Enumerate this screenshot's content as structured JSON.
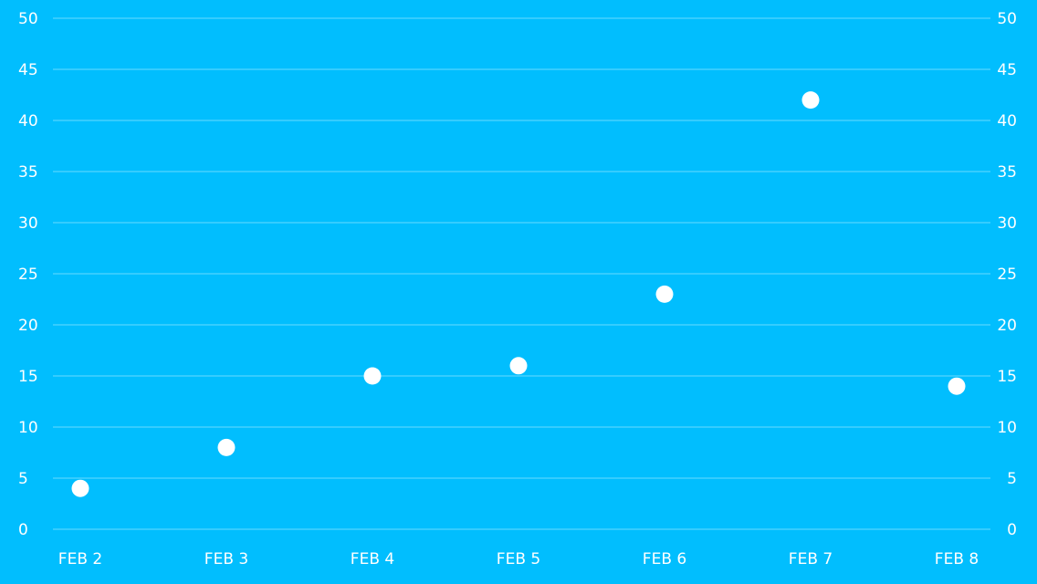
{
  "colors": {
    "background": "#01BEFE",
    "gridline": "rgba(255,255,255,0.28)",
    "text": "#ffffff",
    "point": "#ffffff"
  },
  "chart_data": {
    "type": "scatter",
    "title": "",
    "xlabel": "",
    "ylabel": "",
    "categories": [
      "FEB 2",
      "FEB 3",
      "FEB 4",
      "FEB 5",
      "FEB 6",
      "FEB 7",
      "FEB 8"
    ],
    "values": [
      4,
      8,
      15,
      16,
      23,
      42,
      14
    ],
    "ylim": [
      0,
      50
    ],
    "yticks": [
      0,
      5,
      10,
      15,
      20,
      25,
      30,
      35,
      40,
      45,
      50
    ],
    "grid": true,
    "y_axis_labels": "left-and-right",
    "legend": "none"
  }
}
